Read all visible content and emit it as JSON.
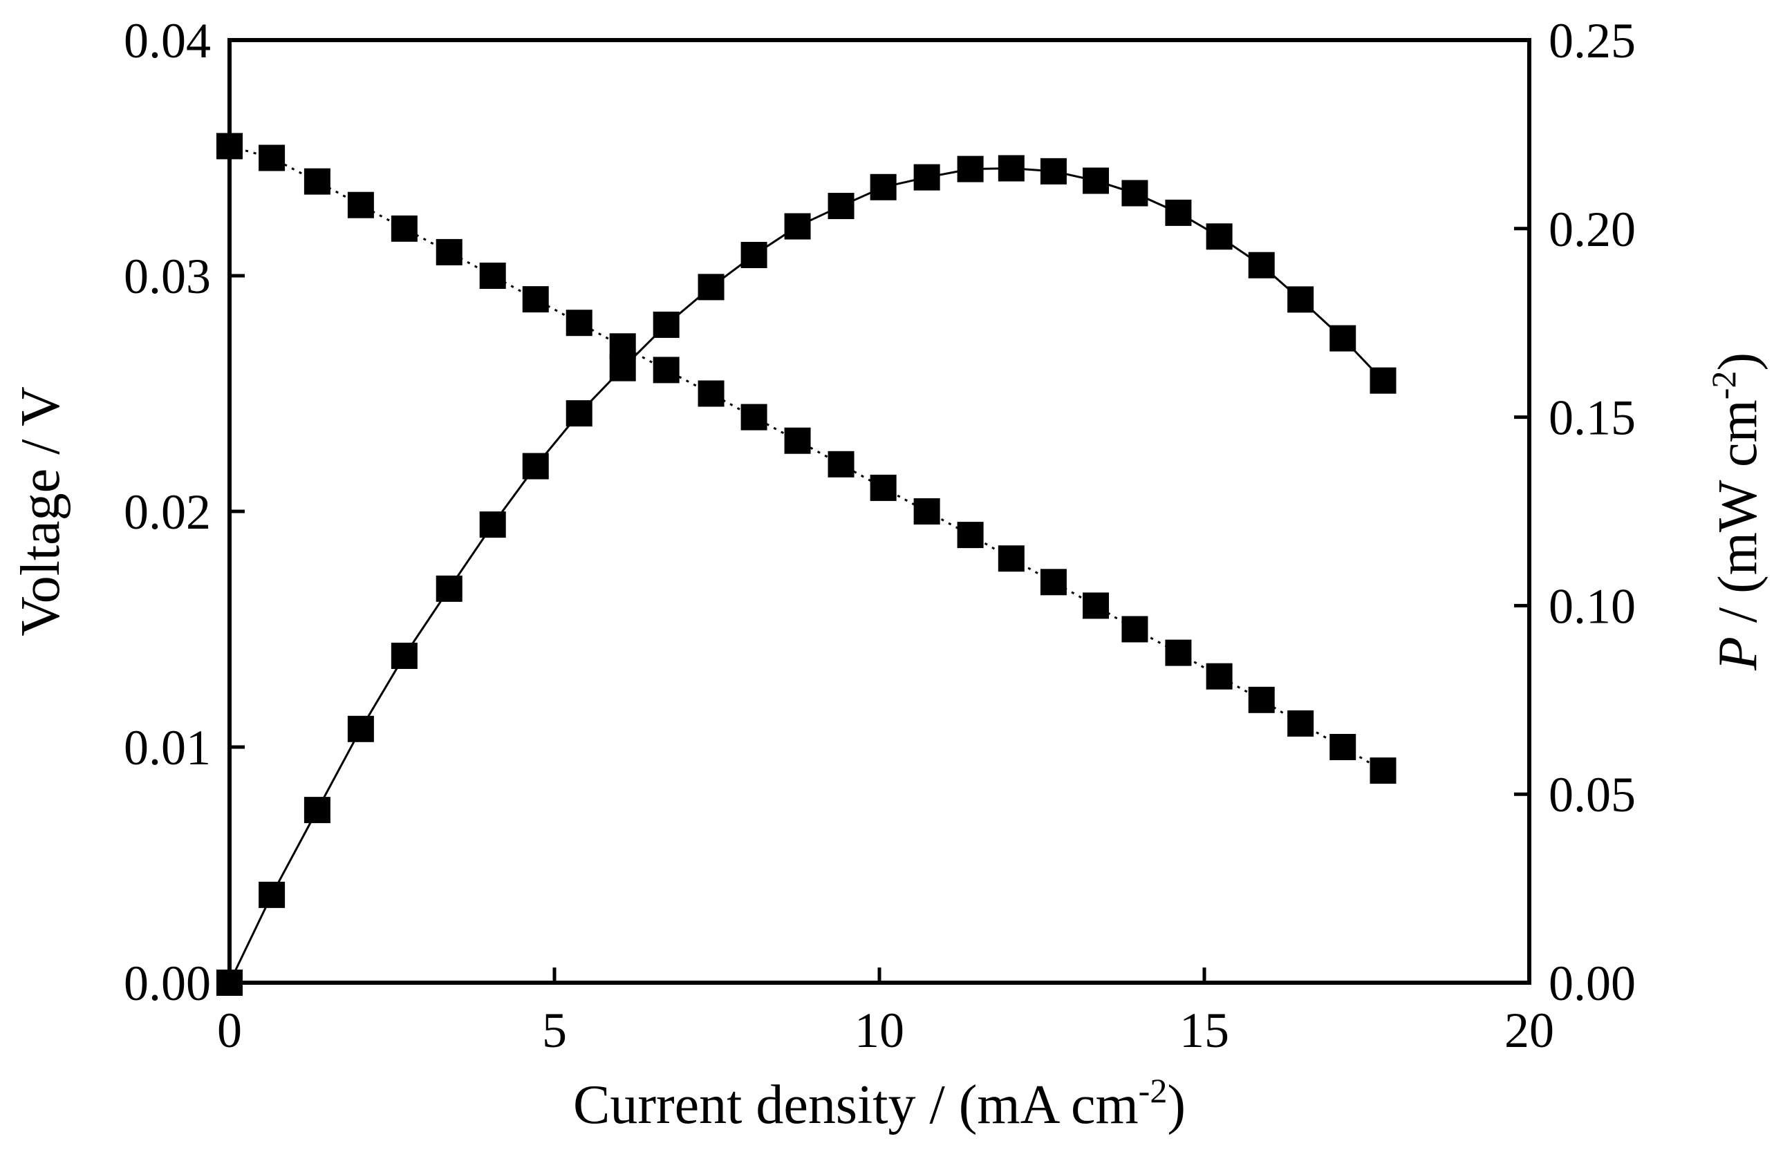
{
  "chart_data": {
    "type": "line",
    "xlabel": {
      "text": "Current density / (mA cm",
      "sup": "-2",
      "end": ")"
    },
    "ylabel": "Voltage / V",
    "y2label": {
      "italic": "P",
      "text": " / (mW cm",
      "sup": "-2",
      "end": ")"
    },
    "x": [
      0,
      0.65,
      1.35,
      2.02,
      2.69,
      3.38,
      4.05,
      4.71,
      5.38,
      6.05,
      6.72,
      7.41,
      8.07,
      8.74,
      9.41,
      10.06,
      10.73,
      11.4,
      12.03,
      12.68,
      13.33,
      13.93,
      14.6,
      15.23,
      15.88,
      16.48,
      17.13,
      17.75
    ],
    "series": [
      {
        "color": "#000000",
        "dash": true,
        "marker": "square",
        "values": [
          0.0355,
          0.035,
          0.034,
          0.033,
          0.032,
          0.031,
          0.03,
          0.029,
          0.028,
          0.027,
          0.026,
          0.025,
          0.024,
          0.023,
          0.022,
          0.021,
          0.02,
          0.019,
          0.018,
          0.017,
          0.016,
          0.015,
          0.014,
          0.013,
          0.012,
          0.011,
          0.01,
          0.009
        ]
      },
      {
        "color": "#000000",
        "dash": false,
        "marker": "square",
        "axis": "y2",
        "values": [
          0,
          0.0233,
          0.0458,
          0.0673,
          0.0867,
          0.1045,
          0.1215,
          0.137,
          0.151,
          0.163,
          0.1745,
          0.1845,
          0.193,
          0.2006,
          0.206,
          0.211,
          0.2136,
          0.2158,
          0.216,
          0.2152,
          0.2127,
          0.2094,
          0.2042,
          0.1979,
          0.1903,
          0.1812,
          0.1709,
          0.1597
        ]
      }
    ],
    "xlim": [
      0,
      20
    ],
    "xticks": [
      0,
      5,
      10,
      15,
      20
    ],
    "ylim": [
      0,
      0.04
    ],
    "yticks": [
      {
        "value": 0,
        "label": "0.00"
      },
      {
        "value": 0.01,
        "label": "0.01"
      },
      {
        "value": 0.02,
        "label": "0.02"
      },
      {
        "value": 0.03,
        "label": "0.03"
      },
      {
        "value": 0.04,
        "label": "0.04"
      }
    ],
    "y2lim": [
      0,
      0.25
    ],
    "y2ticks": [
      {
        "value": 0,
        "label": "0.00"
      },
      {
        "value": 0.05,
        "label": "0.05"
      },
      {
        "value": 0.1,
        "label": "0.10"
      },
      {
        "value": 0.15,
        "label": "0.15"
      },
      {
        "value": 0.2,
        "label": "0.20"
      },
      {
        "value": 0.25,
        "label": "0.25"
      }
    ],
    "grid": false
  }
}
